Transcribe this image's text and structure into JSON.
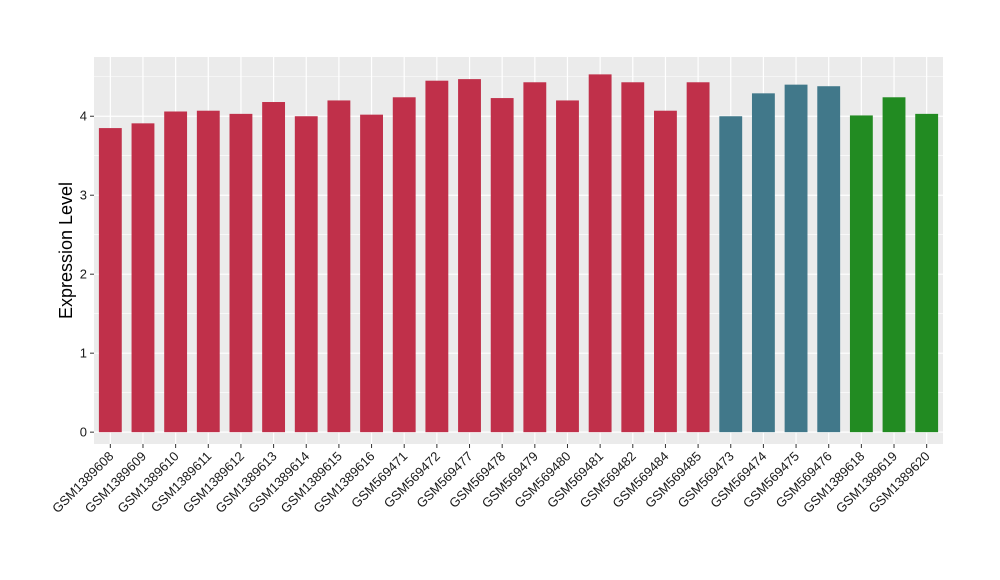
{
  "chart_data": {
    "type": "bar",
    "ylabel": "Expression Level",
    "xlabel": "",
    "ylim": [
      -0.15,
      4.75
    ],
    "yticks": [
      0,
      1,
      2,
      3,
      4
    ],
    "grid": true,
    "legend": "none",
    "categories": [
      "GSM1389608",
      "GSM1389609",
      "GSM1389610",
      "GSM1389611",
      "GSM1389612",
      "GSM1389613",
      "GSM1389614",
      "GSM1389615",
      "GSM1389616",
      "GSM569471",
      "GSM569472",
      "GSM569477",
      "GSM569478",
      "GSM569479",
      "GSM569480",
      "GSM569481",
      "GSM569482",
      "GSM569484",
      "GSM569485",
      "GSM569473",
      "GSM569474",
      "GSM569475",
      "GSM569476",
      "GSM1389618",
      "GSM1389619",
      "GSM1389620"
    ],
    "values": [
      3.85,
      3.91,
      4.06,
      4.07,
      4.03,
      4.18,
      4.0,
      4.2,
      4.02,
      4.24,
      4.45,
      4.47,
      4.23,
      4.43,
      4.2,
      4.53,
      4.43,
      4.07,
      4.43,
      4.0,
      4.29,
      4.4,
      4.38,
      4.01,
      4.24,
      4.03
    ],
    "bar_colors": [
      "#C0304A",
      "#C0304A",
      "#C0304A",
      "#C0304A",
      "#C0304A",
      "#C0304A",
      "#C0304A",
      "#C0304A",
      "#C0304A",
      "#C0304A",
      "#C0304A",
      "#C0304A",
      "#C0304A",
      "#C0304A",
      "#C0304A",
      "#C0304A",
      "#C0304A",
      "#C0304A",
      "#C0304A",
      "#41788A",
      "#41788A",
      "#41788A",
      "#41788A",
      "#228B22",
      "#228B22",
      "#228B22"
    ],
    "panel_background": "#EBEBEB",
    "gridline_color": "#FFFFFF"
  }
}
